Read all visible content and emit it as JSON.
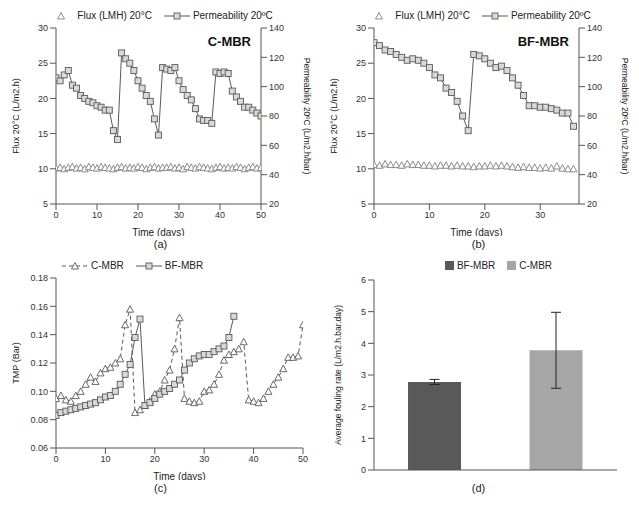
{
  "chart_data": [
    {
      "type": "line",
      "title": "C-MBR",
      "caption": "(a)",
      "x_label": "Time (days)",
      "y_label": "Flux  20°C (L/m2.h)",
      "y2_label": "Permeability 20ºC (L/m2.h/bar)",
      "legend": "top",
      "grid": false,
      "x": [
        0,
        1,
        2,
        3,
        4,
        5,
        6,
        7,
        8,
        9,
        10,
        11,
        12,
        13,
        14,
        15,
        16,
        17,
        18,
        19,
        20,
        21,
        22,
        23,
        24,
        25,
        26,
        27,
        28,
        29,
        30,
        31,
        32,
        33,
        34,
        35,
        36,
        37,
        38,
        39,
        40,
        41,
        42,
        43,
        44,
        45,
        46,
        47,
        48,
        49,
        50
      ],
      "xlim": [
        0,
        50
      ],
      "xticks": [
        0,
        10,
        20,
        30,
        40,
        50
      ],
      "ylim": [
        5,
        30
      ],
      "yticks": [
        5,
        10,
        15,
        20,
        25,
        30
      ],
      "y2lim": [
        20,
        140
      ],
      "y2ticks": [
        20,
        40,
        60,
        80,
        100,
        120,
        140
      ],
      "series": [
        {
          "name": "Flux (LMH) 20°C",
          "color": "#7f7f7f",
          "marker": "triangle",
          "line_style": "none",
          "values": [
            10.1,
            10.2,
            10.0,
            10.2,
            10.3,
            10.1,
            10.2,
            10.0,
            10.3,
            10.2,
            10.1,
            10.3,
            10.2,
            10.1,
            10.0,
            10.2,
            10.3,
            10.1,
            10.2,
            10.1,
            10.3,
            10.2,
            10.0,
            10.2,
            10.3,
            10.1,
            10.2,
            10.2,
            10.3,
            10.1,
            10.2,
            10.0,
            10.3,
            10.2,
            10.1,
            10.3,
            10.2,
            10.1,
            10.0,
            10.2,
            10.3,
            10.1,
            10.2,
            10.1,
            10.3,
            10.2,
            10.0,
            10.2,
            10.3,
            10.1,
            10.2
          ]
        },
        {
          "name": "Permeability 20ºC",
          "color": "#595959",
          "marker": "square",
          "line_style": "solid",
          "axis": "y2",
          "values": [
            106,
            104,
            108,
            111,
            101,
            99,
            94,
            92,
            90,
            89,
            87,
            86,
            84,
            84,
            70,
            64,
            123,
            119,
            116,
            111,
            104,
            99,
            94,
            90,
            78,
            67,
            113,
            112,
            111,
            113,
            104,
            98,
            94,
            91,
            85,
            78,
            77,
            77,
            75,
            110,
            109,
            110,
            109,
            97,
            93,
            90,
            86,
            86,
            84,
            82,
            80
          ]
        }
      ]
    },
    {
      "type": "line",
      "title": "BF-MBR",
      "caption": "(b)",
      "x_label": "Time (days)",
      "y_label": "Flux  20°C (L/m2.h)",
      "y2_label": "Permeability 20ºC (L/m2.h/bar)",
      "legend": "top",
      "grid": false,
      "x": [
        0,
        1,
        2,
        3,
        4,
        5,
        6,
        7,
        8,
        9,
        10,
        11,
        12,
        13,
        14,
        15,
        16,
        17,
        18,
        19,
        20,
        21,
        22,
        23,
        24,
        25,
        26,
        27,
        28,
        29,
        30,
        31,
        32,
        33,
        34,
        35,
        36
      ],
      "xlim": [
        0,
        37
      ],
      "xticks": [
        0,
        10,
        20,
        30
      ],
      "ylim": [
        5,
        30
      ],
      "yticks": [
        5,
        10,
        15,
        20,
        25,
        30
      ],
      "y2lim": [
        20,
        140
      ],
      "y2ticks": [
        20,
        40,
        60,
        80,
        100,
        120,
        140
      ],
      "series": [
        {
          "name": "Flux (LMH) 20°C",
          "color": "#7f7f7f",
          "marker": "triangle",
          "line_style": "none",
          "values": [
            10.6,
            10.5,
            10.7,
            10.6,
            10.6,
            10.5,
            10.7,
            10.6,
            10.6,
            10.5,
            10.5,
            10.4,
            10.5,
            10.5,
            10.4,
            10.5,
            10.4,
            10.4,
            10.3,
            10.4,
            10.4,
            10.5,
            10.4,
            10.5,
            10.4,
            10.3,
            10.2,
            10.3,
            10.2,
            10.2,
            10.1,
            10.2,
            10.1,
            10.4,
            10.1,
            10.0,
            10.0
          ]
        },
        {
          "name": "Permeability 20ºC",
          "color": "#595959",
          "marker": "square",
          "line_style": "solid",
          "axis": "y2",
          "values": [
            130,
            128,
            125,
            124,
            122,
            120,
            118,
            119,
            118,
            116,
            113,
            108,
            106,
            99,
            96,
            90,
            80,
            70,
            122,
            121,
            119,
            116,
            113,
            114,
            111,
            106,
            101,
            94,
            87,
            87,
            86,
            86,
            85,
            84,
            82,
            82,
            73
          ]
        }
      ]
    },
    {
      "type": "line",
      "caption": "(c)",
      "x_label": "Time (days)",
      "y_label": "TMP (Bar)",
      "legend": "top left",
      "grid": false,
      "x": [
        0,
        1,
        2,
        3,
        4,
        5,
        6,
        7,
        8,
        9,
        10,
        11,
        12,
        13,
        14,
        15,
        16,
        17,
        18,
        19,
        20,
        21,
        22,
        23,
        24,
        25,
        26,
        27,
        28,
        29,
        30,
        31,
        32,
        33,
        34,
        35,
        36,
        37,
        38,
        39,
        40,
        41,
        42,
        43,
        44,
        45,
        46,
        47,
        48,
        49,
        50
      ],
      "xlim": [
        0,
        50
      ],
      "xticks": [
        0,
        10,
        20,
        30,
        40,
        50
      ],
      "ylim": [
        0.06,
        0.18
      ],
      "yticks": [
        0.06,
        0.08,
        {
          "value": 0.1,
          "label": "0.10"
        },
        0.12,
        0.14,
        0.16,
        0.18
      ],
      "series": [
        {
          "name": "C-MBR",
          "color": "#595959",
          "marker": "triangle",
          "line_style": "dashed",
          "values": [
            0.095,
            0.097,
            0.094,
            0.093,
            0.097,
            0.1,
            0.105,
            0.11,
            0.107,
            0.113,
            0.116,
            0.117,
            0.12,
            0.123,
            0.147,
            0.158,
            0.085,
            0.087,
            0.09,
            0.093,
            0.098,
            0.1,
            0.108,
            0.115,
            0.13,
            0.152,
            0.095,
            0.093,
            0.092,
            0.093,
            0.1,
            0.101,
            0.105,
            0.112,
            0.122,
            0.126,
            0.128,
            0.13,
            0.135,
            0.094,
            0.093,
            0.092,
            0.095,
            0.1,
            0.105,
            0.11,
            0.116,
            0.124,
            0.124,
            0.125,
            0.147
          ]
        },
        {
          "name": "BF-MBR",
          "color": "#595959",
          "marker": "square",
          "line_style": "solid",
          "values": [
            0.083,
            0.085,
            0.086,
            0.087,
            0.088,
            0.089,
            0.09,
            0.091,
            0.092,
            0.094,
            0.096,
            0.097,
            0.1,
            0.105,
            0.112,
            0.119,
            0.138,
            0.151,
            0.09,
            0.092,
            0.095,
            0.098,
            0.1,
            0.102,
            0.105,
            0.108,
            0.115,
            0.12,
            0.123,
            0.125,
            0.126,
            0.126,
            0.128,
            0.13,
            0.132,
            0.138,
            0.153,
            null,
            null,
            null,
            null,
            null,
            null,
            null,
            null,
            null,
            null,
            null,
            null,
            null,
            null
          ]
        }
      ]
    },
    {
      "type": "bar",
      "caption": "(d)",
      "y_label": "Average fouling rate (L/m2.h.bar.day)",
      "legend": "top",
      "grid": false,
      "tick_labels": "y",
      "categories": [
        "BF-MBR",
        "C-MBR"
      ],
      "values": [
        2.78,
        3.78
      ],
      "errors": [
        0.08,
        1.2
      ],
      "colors": [
        "#595959",
        "#a6a6a6"
      ],
      "ylim": [
        0,
        6
      ],
      "yticks": [
        0,
        1,
        2,
        3,
        4,
        5,
        6
      ]
    }
  ]
}
